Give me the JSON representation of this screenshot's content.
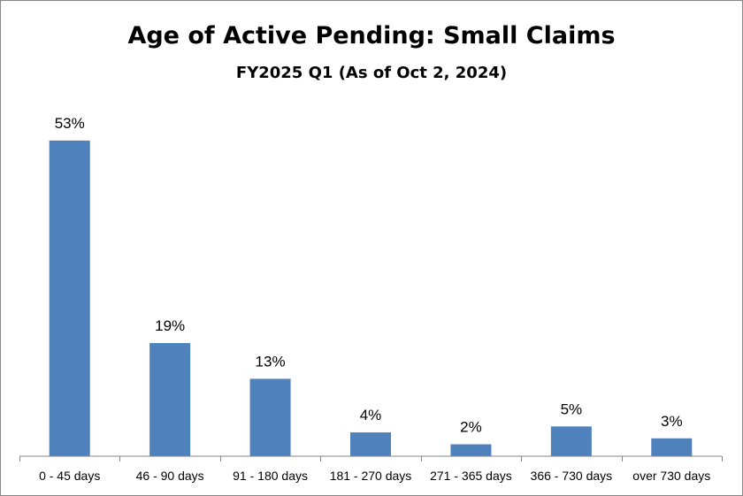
{
  "chart_data": {
    "type": "bar",
    "title": "Age of Active Pending: Small Claims",
    "subtitle": "FY2025 Q1 (As of Oct 2, 2024)",
    "categories": [
      "0 - 45 days",
      "46 - 90 days",
      "91 - 180 days",
      "181 - 270 days",
      "271 - 365 days",
      "366 - 730 days",
      "over 730 days"
    ],
    "values": [
      53,
      19,
      13,
      4,
      2,
      5,
      3
    ],
    "value_labels": [
      "53%",
      "19%",
      "13%",
      "4%",
      "2%",
      "5%",
      "3%"
    ],
    "xlabel": "",
    "ylabel": "",
    "ylim": [
      0,
      53
    ],
    "grid": false,
    "legend": "none",
    "bar_color": "#4F81BD",
    "axis_color": "#868686"
  }
}
